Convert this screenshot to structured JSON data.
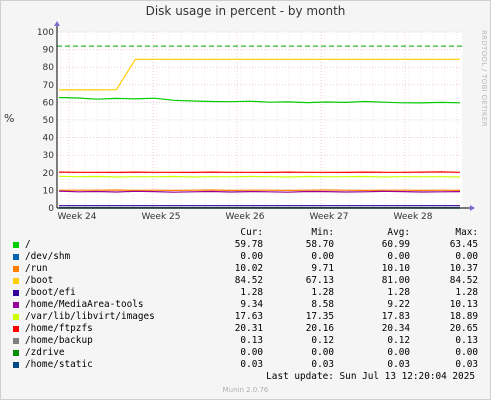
{
  "header": {
    "title": "Disk usage in percent - by month",
    "side_text": "RRDTOOL / TOBI OETIKER",
    "ylabel": "%"
  },
  "chart_data": {
    "type": "line",
    "title": "Disk usage in percent - by month",
    "ylabel": "%",
    "ylim": [
      0,
      100
    ],
    "yticks": [
      0,
      10,
      20,
      30,
      40,
      50,
      60,
      70,
      80,
      90,
      100
    ],
    "x_labels": [
      "Week 24",
      "Week 25",
      "Week 26",
      "Week 27",
      "Week 28"
    ],
    "grid": true,
    "warning_line": 92,
    "series": [
      {
        "name": "/",
        "color": "#00cc00",
        "values": [
          62.8,
          62.5,
          61.8,
          62.3,
          62.0,
          62.4,
          61.2,
          60.8,
          60.5,
          60.4,
          60.7,
          60.1,
          60.3,
          59.9,
          60.2,
          60.0,
          60.5,
          60.1,
          59.8,
          59.7,
          60.0,
          59.8
        ]
      },
      {
        "name": "/dev/shm",
        "color": "#0066b3",
        "values": [
          0,
          0,
          0,
          0,
          0,
          0,
          0,
          0,
          0,
          0,
          0,
          0,
          0,
          0,
          0,
          0,
          0,
          0,
          0,
          0,
          0,
          0
        ]
      },
      {
        "name": "/run",
        "color": "#ff8000",
        "values": [
          10.0,
          10.1,
          10.1,
          10.2,
          10.0,
          10.1,
          10.0,
          10.1,
          10.2,
          10.0,
          10.1,
          10.1,
          10.0,
          10.1,
          10.2,
          10.1,
          10.0,
          10.1,
          10.1,
          10.0,
          10.1,
          10.0
        ]
      },
      {
        "name": "/boot",
        "color": "#ffcc00",
        "values": [
          67.1,
          67.1,
          67.1,
          67.2,
          84.5,
          84.5,
          84.5,
          84.5,
          84.5,
          84.5,
          84.5,
          84.5,
          84.5,
          84.5,
          84.5,
          84.5,
          84.5,
          84.5,
          84.5,
          84.5,
          84.5,
          84.5
        ]
      },
      {
        "name": "/boot/efi",
        "color": "#330099",
        "values": [
          1.28,
          1.28,
          1.28,
          1.28,
          1.28,
          1.28,
          1.28,
          1.28,
          1.28,
          1.28,
          1.28,
          1.28,
          1.28,
          1.28,
          1.28,
          1.28,
          1.28,
          1.28,
          1.28,
          1.28,
          1.28,
          1.28
        ]
      },
      {
        "name": "/home/MediaArea-tools",
        "color": "#990099",
        "values": [
          9.6,
          9.2,
          9.4,
          9.1,
          9.5,
          9.3,
          9.0,
          9.2,
          9.4,
          9.1,
          9.3,
          9.2,
          9.0,
          9.4,
          9.3,
          9.1,
          9.2,
          9.5,
          9.3,
          9.1,
          9.2,
          9.3
        ]
      },
      {
        "name": "/var/lib/libvirt/images",
        "color": "#ccff00",
        "values": [
          18.0,
          17.8,
          17.9,
          17.6,
          17.8,
          17.7,
          17.9,
          17.6,
          17.8,
          17.7,
          17.9,
          17.8,
          17.6,
          17.9,
          17.7,
          17.8,
          17.9,
          17.6,
          17.8,
          17.7,
          17.8,
          17.6
        ]
      },
      {
        "name": "/home/ftpzfs",
        "color": "#ff0000",
        "values": [
          20.4,
          20.3,
          20.3,
          20.2,
          20.4,
          20.3,
          20.3,
          20.2,
          20.4,
          20.3,
          20.3,
          20.2,
          20.4,
          20.3,
          20.3,
          20.2,
          20.4,
          20.3,
          20.3,
          20.4,
          20.5,
          20.3
        ]
      },
      {
        "name": "/home/backup",
        "color": "#808080",
        "values": [
          0.12,
          0.12,
          0.12,
          0.12,
          0.12,
          0.12,
          0.12,
          0.12,
          0.12,
          0.12,
          0.12,
          0.12,
          0.12,
          0.12,
          0.12,
          0.12,
          0.12,
          0.13,
          0.13,
          0.13,
          0.13,
          0.13
        ]
      },
      {
        "name": "/zdrive",
        "color": "#008f00",
        "values": [
          0,
          0,
          0,
          0,
          0,
          0,
          0,
          0,
          0,
          0,
          0,
          0,
          0,
          0,
          0,
          0,
          0,
          0,
          0,
          0,
          0,
          0
        ]
      },
      {
        "name": "/home/static",
        "color": "#00487d",
        "values": [
          0.03,
          0.03,
          0.03,
          0.03,
          0.03,
          0.03,
          0.03,
          0.03,
          0.03,
          0.03,
          0.03,
          0.03,
          0.03,
          0.03,
          0.03,
          0.03,
          0.03,
          0.03,
          0.03,
          0.03,
          0.03,
          0.03
        ]
      }
    ]
  },
  "legend": {
    "headers": {
      "cur": "Cur:",
      "min": "Min:",
      "avg": "Avg:",
      "max": "Max:"
    },
    "rows": [
      {
        "name": "/",
        "color": "#00cc00",
        "cur": "59.78",
        "min": "58.70",
        "avg": "60.99",
        "max": "63.45"
      },
      {
        "name": "/dev/shm",
        "color": "#0066b3",
        "cur": "0.00",
        "min": "0.00",
        "avg": "0.00",
        "max": "0.00"
      },
      {
        "name": "/run",
        "color": "#ff8000",
        "cur": "10.02",
        "min": "9.71",
        "avg": "10.10",
        "max": "10.37"
      },
      {
        "name": "/boot",
        "color": "#ffcc00",
        "cur": "84.52",
        "min": "67.13",
        "avg": "81.00",
        "max": "84.52"
      },
      {
        "name": "/boot/efi",
        "color": "#330099",
        "cur": "1.28",
        "min": "1.28",
        "avg": "1.28",
        "max": "1.28"
      },
      {
        "name": "/home/MediaArea-tools",
        "color": "#990099",
        "cur": "9.34",
        "min": "8.58",
        "avg": "9.22",
        "max": "10.13"
      },
      {
        "name": "/var/lib/libvirt/images",
        "color": "#ccff00",
        "cur": "17.63",
        "min": "17.35",
        "avg": "17.83",
        "max": "18.89"
      },
      {
        "name": "/home/ftpzfs",
        "color": "#ff0000",
        "cur": "20.31",
        "min": "20.16",
        "avg": "20.34",
        "max": "20.65"
      },
      {
        "name": "/home/backup",
        "color": "#808080",
        "cur": "0.13",
        "min": "0.12",
        "avg": "0.12",
        "max": "0.13"
      },
      {
        "name": "/zdrive",
        "color": "#008f00",
        "cur": "0.00",
        "min": "0.00",
        "avg": "0.00",
        "max": "0.00"
      },
      {
        "name": "/home/static",
        "color": "#00487d",
        "cur": "0.03",
        "min": "0.03",
        "avg": "0.03",
        "max": "0.03"
      }
    ]
  },
  "footer": {
    "last_update": "Last update: Sun Jul 13 12:20:04 2025",
    "munin_version": "Munin 2.0.76"
  }
}
